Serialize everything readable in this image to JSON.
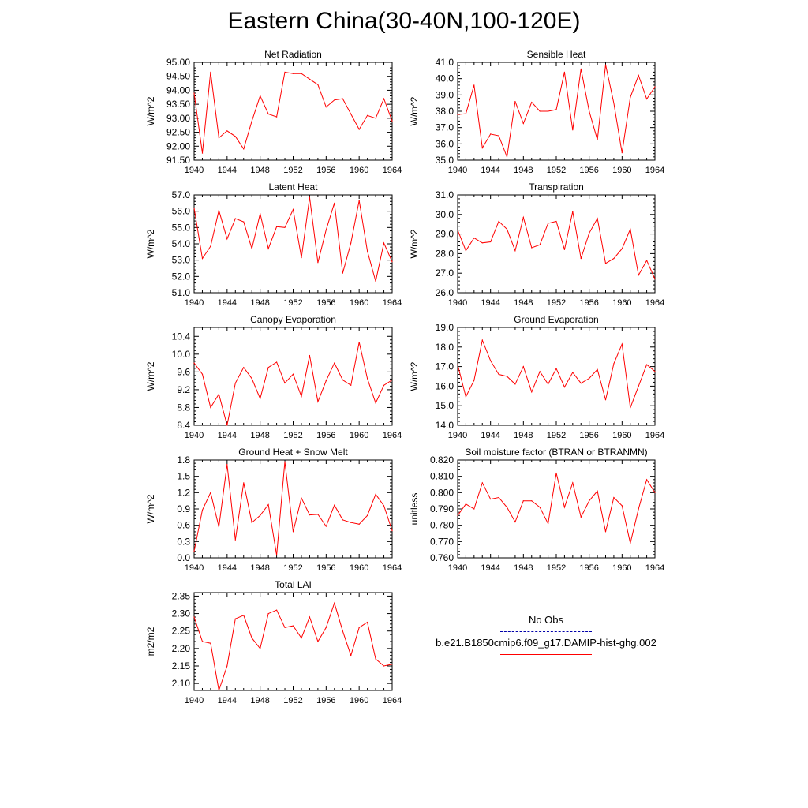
{
  "figure_title": "Eastern China(30-40N,100-120E)",
  "legend": {
    "entries": [
      {
        "label": "No Obs",
        "color": "#0000aa",
        "style": "dashed"
      },
      {
        "label": "b.e21.B1850cmip6.f09_g17.DAMIP-hist-ghg.002",
        "color": "#ff0000",
        "style": "solid"
      }
    ]
  },
  "chart_data": [
    {
      "type": "line",
      "title": "Net Radiation",
      "ylabel": "W/m^2",
      "ylim": [
        91.5,
        95.0
      ],
      "yticks": [
        "91.50",
        "92.00",
        "92.50",
        "93.00",
        "93.50",
        "94.00",
        "94.50",
        "95.00"
      ],
      "xticks": [
        "1940",
        "1944",
        "1948",
        "1952",
        "1956",
        "1960",
        "1964"
      ],
      "xlim": [
        1940,
        1964
      ],
      "x": [
        1940,
        1941,
        1942,
        1943,
        1944,
        1945,
        1946,
        1947,
        1948,
        1949,
        1950,
        1951,
        1952,
        1953,
        1954,
        1955,
        1956,
        1957,
        1958,
        1959,
        1960,
        1961,
        1962,
        1963,
        1964
      ],
      "series": [
        {
          "color": "#ff0000",
          "values": [
            93.9,
            91.75,
            94.65,
            92.3,
            92.55,
            92.35,
            91.9,
            92.9,
            93.8,
            93.15,
            93.05,
            94.65,
            94.6,
            94.6,
            94.4,
            94.2,
            93.4,
            93.65,
            93.7,
            93.15,
            92.6,
            93.1,
            93.0,
            93.7,
            92.9
          ]
        }
      ]
    },
    {
      "type": "line",
      "title": "Sensible Heat",
      "ylabel": "W/m^2",
      "ylim": [
        35.0,
        41.0
      ],
      "yticks": [
        "35.0",
        "36.0",
        "37.0",
        "38.0",
        "39.0",
        "40.0",
        "41.0"
      ],
      "xticks": [
        "1940",
        "1944",
        "1948",
        "1952",
        "1956",
        "1960",
        "1964"
      ],
      "xlim": [
        1940,
        1964
      ],
      "x": [
        1940,
        1941,
        1942,
        1943,
        1944,
        1945,
        1946,
        1947,
        1948,
        1949,
        1950,
        1951,
        1952,
        1953,
        1954,
        1955,
        1956,
        1957,
        1958,
        1959,
        1960,
        1961,
        1962,
        1963,
        1964
      ],
      "series": [
        {
          "color": "#ff0000",
          "values": [
            37.8,
            37.85,
            39.6,
            35.75,
            36.6,
            36.5,
            35.2,
            38.6,
            37.25,
            38.55,
            38.0,
            38.0,
            38.1,
            40.4,
            36.85,
            40.6,
            38.0,
            36.25,
            40.85,
            38.5,
            35.45,
            38.85,
            40.2,
            38.75,
            39.5
          ]
        }
      ]
    },
    {
      "type": "line",
      "title": "Latent Heat",
      "ylabel": "W/m^2",
      "ylim": [
        51.0,
        57.0
      ],
      "yticks": [
        "51.0",
        "52.0",
        "53.0",
        "54.0",
        "55.0",
        "56.0",
        "57.0"
      ],
      "xticks": [
        "1940",
        "1944",
        "1948",
        "1952",
        "1956",
        "1960",
        "1964"
      ],
      "xlim": [
        1940,
        1964
      ],
      "x": [
        1940,
        1941,
        1942,
        1943,
        1944,
        1945,
        1946,
        1947,
        1948,
        1949,
        1950,
        1951,
        1952,
        1953,
        1954,
        1955,
        1956,
        1957,
        1958,
        1959,
        1960,
        1961,
        1962,
        1963,
        1964
      ],
      "series": [
        {
          "color": "#ff0000",
          "values": [
            56.2,
            53.1,
            53.85,
            56.05,
            54.3,
            55.55,
            55.35,
            53.7,
            55.85,
            53.7,
            55.05,
            55.0,
            56.1,
            53.15,
            56.85,
            52.85,
            54.85,
            56.5,
            52.2,
            54.05,
            56.65,
            53.55,
            51.7,
            54.05,
            52.9
          ]
        }
      ]
    },
    {
      "type": "line",
      "title": "Transpiration",
      "ylabel": "W/m^2",
      "ylim": [
        26.0,
        31.0
      ],
      "yticks": [
        "26.0",
        "27.0",
        "28.0",
        "29.0",
        "30.0",
        "31.0"
      ],
      "xticks": [
        "1940",
        "1944",
        "1948",
        "1952",
        "1956",
        "1960",
        "1964"
      ],
      "xlim": [
        1940,
        1964
      ],
      "x": [
        1940,
        1941,
        1942,
        1943,
        1944,
        1945,
        1946,
        1947,
        1948,
        1949,
        1950,
        1951,
        1952,
        1953,
        1954,
        1955,
        1956,
        1957,
        1958,
        1959,
        1960,
        1961,
        1962,
        1963,
        1964
      ],
      "series": [
        {
          "color": "#ff0000",
          "values": [
            29.2,
            28.15,
            28.8,
            28.55,
            28.6,
            29.65,
            29.25,
            28.15,
            29.85,
            28.3,
            28.45,
            29.55,
            29.65,
            28.2,
            30.15,
            27.75,
            29.05,
            29.8,
            27.5,
            27.75,
            28.25,
            29.25,
            26.9,
            27.65,
            26.7
          ]
        }
      ]
    },
    {
      "type": "line",
      "title": "Canopy Evaporation",
      "ylabel": "W/m^2",
      "ylim": [
        8.4,
        10.6
      ],
      "yticks": [
        "8.4",
        "8.8",
        "9.2",
        "9.6",
        "10.0",
        "10.4"
      ],
      "xticks": [
        "1940",
        "1944",
        "1948",
        "1952",
        "1956",
        "1960",
        "1964"
      ],
      "xlim": [
        1940,
        1964
      ],
      "x": [
        1940,
        1941,
        1942,
        1943,
        1944,
        1945,
        1946,
        1947,
        1948,
        1949,
        1950,
        1951,
        1952,
        1953,
        1954,
        1955,
        1956,
        1957,
        1958,
        1959,
        1960,
        1961,
        1962,
        1963,
        1964
      ],
      "series": [
        {
          "color": "#ff0000",
          "values": [
            9.8,
            9.55,
            8.8,
            9.1,
            8.4,
            9.35,
            9.7,
            9.45,
            9.0,
            9.7,
            9.82,
            9.35,
            9.55,
            9.05,
            9.97,
            8.93,
            9.4,
            9.8,
            9.42,
            9.3,
            10.27,
            9.45,
            8.9,
            9.3,
            9.42
          ]
        }
      ]
    },
    {
      "type": "line",
      "title": "Ground Evaporation",
      "ylabel": "W/m^2",
      "ylim": [
        14.0,
        19.0
      ],
      "yticks": [
        "14.0",
        "15.0",
        "16.0",
        "17.0",
        "18.0",
        "19.0"
      ],
      "xticks": [
        "1940",
        "1944",
        "1948",
        "1952",
        "1956",
        "1960",
        "1964"
      ],
      "xlim": [
        1940,
        1964
      ],
      "x": [
        1940,
        1941,
        1942,
        1943,
        1944,
        1945,
        1946,
        1947,
        1948,
        1949,
        1950,
        1951,
        1952,
        1953,
        1954,
        1955,
        1956,
        1957,
        1958,
        1959,
        1960,
        1961,
        1962,
        1963,
        1964
      ],
      "series": [
        {
          "color": "#ff0000",
          "values": [
            17.1,
            15.45,
            16.3,
            18.35,
            17.3,
            16.6,
            16.5,
            16.1,
            17.0,
            15.7,
            16.75,
            16.1,
            16.9,
            15.95,
            16.7,
            16.15,
            16.4,
            16.85,
            15.3,
            17.15,
            18.15,
            14.9,
            16.0,
            17.1,
            16.75
          ]
        }
      ]
    },
    {
      "type": "line",
      "title": "Ground Heat + Snow Melt",
      "ylabel": "W/m^2",
      "ylim": [
        0.0,
        1.8
      ],
      "yticks": [
        "0.0",
        "0.3",
        "0.6",
        "0.9",
        "1.2",
        "1.5",
        "1.8"
      ],
      "xticks": [
        "1940",
        "1944",
        "1948",
        "1952",
        "1956",
        "1960",
        "1964"
      ],
      "xlim": [
        1940,
        1964
      ],
      "x": [
        1940,
        1941,
        1942,
        1943,
        1944,
        1945,
        1946,
        1947,
        1948,
        1949,
        1950,
        1951,
        1952,
        1953,
        1954,
        1955,
        1956,
        1957,
        1958,
        1959,
        1960,
        1961,
        1962,
        1963,
        1964
      ],
      "series": [
        {
          "color": "#ff0000",
          "values": [
            0.12,
            0.88,
            1.2,
            0.57,
            1.72,
            0.33,
            1.38,
            0.65,
            0.78,
            0.98,
            0.05,
            1.77,
            0.48,
            1.1,
            0.79,
            0.8,
            0.58,
            0.97,
            0.7,
            0.65,
            0.62,
            0.78,
            1.17,
            0.96,
            0.5
          ]
        }
      ]
    },
    {
      "type": "line",
      "title": "Soil moisture factor (BTRAN or BTRANMN)",
      "ylabel": "unitless",
      "ylim": [
        0.76,
        0.82
      ],
      "yticks": [
        "0.760",
        "0.770",
        "0.780",
        "0.790",
        "0.800",
        "0.810",
        "0.820"
      ],
      "xticks": [
        "1940",
        "1944",
        "1948",
        "1952",
        "1956",
        "1960",
        "1964"
      ],
      "xlim": [
        1940,
        1964
      ],
      "x": [
        1940,
        1941,
        1942,
        1943,
        1944,
        1945,
        1946,
        1947,
        1948,
        1949,
        1950,
        1951,
        1952,
        1953,
        1954,
        1955,
        1956,
        1957,
        1958,
        1959,
        1960,
        1961,
        1962,
        1963,
        1964
      ],
      "series": [
        {
          "color": "#ff0000",
          "values": [
            0.786,
            0.793,
            0.79,
            0.806,
            0.796,
            0.797,
            0.791,
            0.782,
            0.795,
            0.795,
            0.791,
            0.781,
            0.812,
            0.791,
            0.806,
            0.785,
            0.795,
            0.801,
            0.776,
            0.797,
            0.792,
            0.769,
            0.79,
            0.808,
            0.8
          ]
        }
      ]
    },
    {
      "type": "line",
      "title": "Total LAI",
      "ylabel": "m2/m2",
      "ylim": [
        2.08,
        2.36
      ],
      "yticks": [
        "2.10",
        "2.15",
        "2.20",
        "2.25",
        "2.30",
        "2.35"
      ],
      "xticks": [
        "1940",
        "1944",
        "1948",
        "1952",
        "1956",
        "1960",
        "1964"
      ],
      "xlim": [
        1940,
        1964
      ],
      "x": [
        1940,
        1941,
        1942,
        1943,
        1944,
        1945,
        1946,
        1947,
        1948,
        1949,
        1950,
        1951,
        1952,
        1953,
        1954,
        1955,
        1956,
        1957,
        1958,
        1959,
        1960,
        1961,
        1962,
        1963,
        1964
      ],
      "series": [
        {
          "color": "#ff0000",
          "values": [
            2.29,
            2.22,
            2.215,
            2.08,
            2.15,
            2.285,
            2.295,
            2.23,
            2.2,
            2.3,
            2.31,
            2.26,
            2.265,
            2.23,
            2.29,
            2.22,
            2.26,
            2.33,
            2.25,
            2.18,
            2.26,
            2.275,
            2.17,
            2.15,
            2.155
          ]
        }
      ]
    }
  ]
}
